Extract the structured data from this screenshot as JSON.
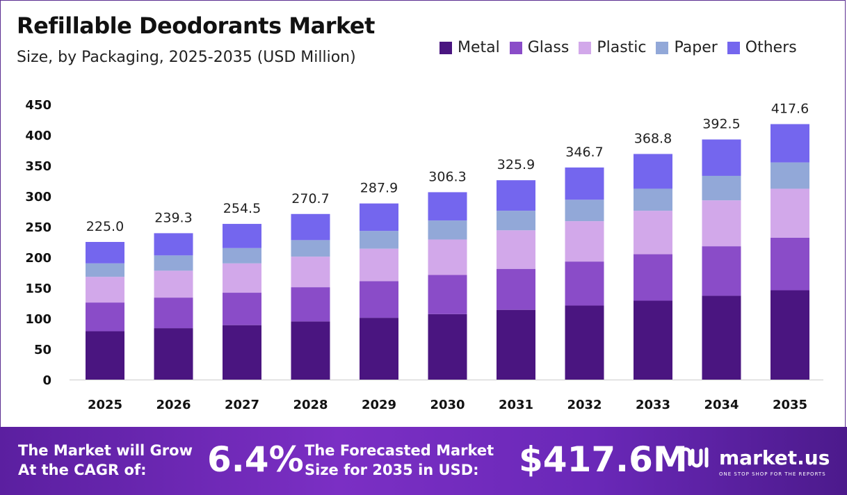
{
  "header": {
    "title": "Refillable Deodorants Market",
    "subtitle": "Size, by Packaging, 2025-2035 (USD Million)"
  },
  "colors": {
    "metal": "#4a1580",
    "glass": "#8a4cc8",
    "plastic": "#d2a8ea",
    "paper": "#92a8d8",
    "others": "#7466ee",
    "banner": "#6a28b8"
  },
  "chart_data": {
    "type": "bar",
    "stacked": true,
    "categories": [
      "2025",
      "2026",
      "2027",
      "2028",
      "2029",
      "2030",
      "2031",
      "2032",
      "2033",
      "2034",
      "2035"
    ],
    "totals": [
      "225.0",
      "239.3",
      "254.5",
      "270.7",
      "287.9",
      "306.3",
      "325.9",
      "346.7",
      "368.8",
      "392.5",
      "417.6"
    ],
    "series": [
      {
        "name": "Metal",
        "values": [
          79,
          84,
          89,
          95,
          101,
          107,
          114,
          121,
          129,
          137,
          146
        ]
      },
      {
        "name": "Glass",
        "values": [
          47,
          50,
          53,
          56,
          60,
          64,
          67,
          72,
          76,
          81,
          86
        ]
      },
      {
        "name": "Plastic",
        "values": [
          42,
          44,
          48,
          50,
          53,
          58,
          63,
          66,
          71,
          75,
          80
        ]
      },
      {
        "name": "Paper",
        "values": [
          22,
          25,
          25,
          27,
          29,
          31,
          32,
          35,
          36,
          40,
          43
        ]
      },
      {
        "name": "Others",
        "values": [
          35,
          36.3,
          39.5,
          42.7,
          44.9,
          46.3,
          49.9,
          52.7,
          56.8,
          59.5,
          62.6
        ]
      }
    ],
    "yticks": [
      "0",
      "50",
      "100",
      "150",
      "200",
      "250",
      "300",
      "350",
      "400",
      "450"
    ],
    "ylim": [
      0,
      450
    ],
    "legend": "top-right",
    "grid": false
  },
  "banner": {
    "cagr_text": "The Market will Grow At the CAGR of:",
    "cagr_value": "6.4%",
    "forecast_text": "The Forecasted Market Size for 2035 in USD:",
    "forecast_value": "$417.6M",
    "brand_name": "market.us",
    "brand_tagline": "ONE STOP SHOP FOR THE REPORTS",
    "brand_icon": "market-us-logo-icon"
  }
}
